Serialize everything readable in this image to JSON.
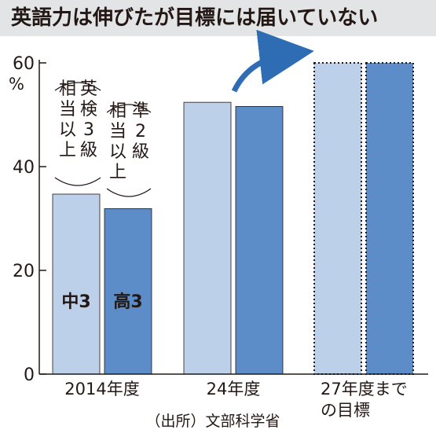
{
  "chart_data": {
    "type": "bar",
    "title": "英語力は伸びたが目標には届いていない",
    "source": "（出所）文部科学省",
    "y_unit": "%",
    "ylim": [
      0,
      60
    ],
    "yticks": [
      "0",
      "20",
      "40",
      "60"
    ],
    "categories": [
      "2014年度",
      "24年度",
      "27年度までの目標"
    ],
    "category_label_lines": [
      [
        "2014年度"
      ],
      [
        "24年度"
      ],
      [
        "27年度まで",
        "の目標"
      ]
    ],
    "series": [
      {
        "name": "中3",
        "values": [
          34.7,
          52.4,
          60
        ],
        "color": "#bdd0ea",
        "legend_lines": [
          "英検3級",
          "相当以上"
        ]
      },
      {
        "name": "高3",
        "values": [
          31.9,
          51.6,
          60
        ],
        "color": "#5c8dc9",
        "legend_lines": [
          "準2級",
          "相当以上"
        ]
      }
    ],
    "target_category_index": 2,
    "grid": false
  }
}
